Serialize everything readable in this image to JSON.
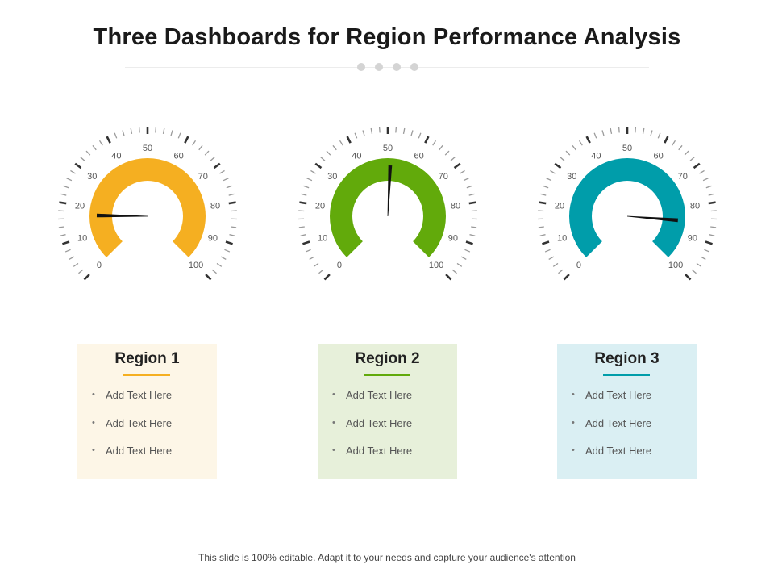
{
  "title": "Three Dashboards for Region Performance Analysis",
  "footer": "This slide is 100% editable. Adapt it to your needs and capture your audience's attention",
  "gauge_tick_labels": [
    "0",
    "10",
    "20",
    "30",
    "40",
    "50",
    "60",
    "70",
    "80",
    "90",
    "100"
  ],
  "gauge_range": [
    0,
    100
  ],
  "regions": [
    {
      "name": "Region 1",
      "color": "#F5AF21",
      "card_bg": "#FDF6E7",
      "needle_value": 17,
      "bullets": [
        "Add Text Here",
        "Add Text Here",
        "Add Text Here"
      ]
    },
    {
      "name": "Region 2",
      "color": "#62AA0B",
      "card_bg": "#E7F0DA",
      "needle_value": 51,
      "bullets": [
        "Add Text Here",
        "Add Text Here",
        "Add Text Here"
      ]
    },
    {
      "name": "Region 3",
      "color": "#009DAA",
      "card_bg": "#DAEFF3",
      "needle_value": 85,
      "bullets": [
        "Add Text Here",
        "Add Text Here",
        "Add Text Here"
      ]
    }
  ]
}
